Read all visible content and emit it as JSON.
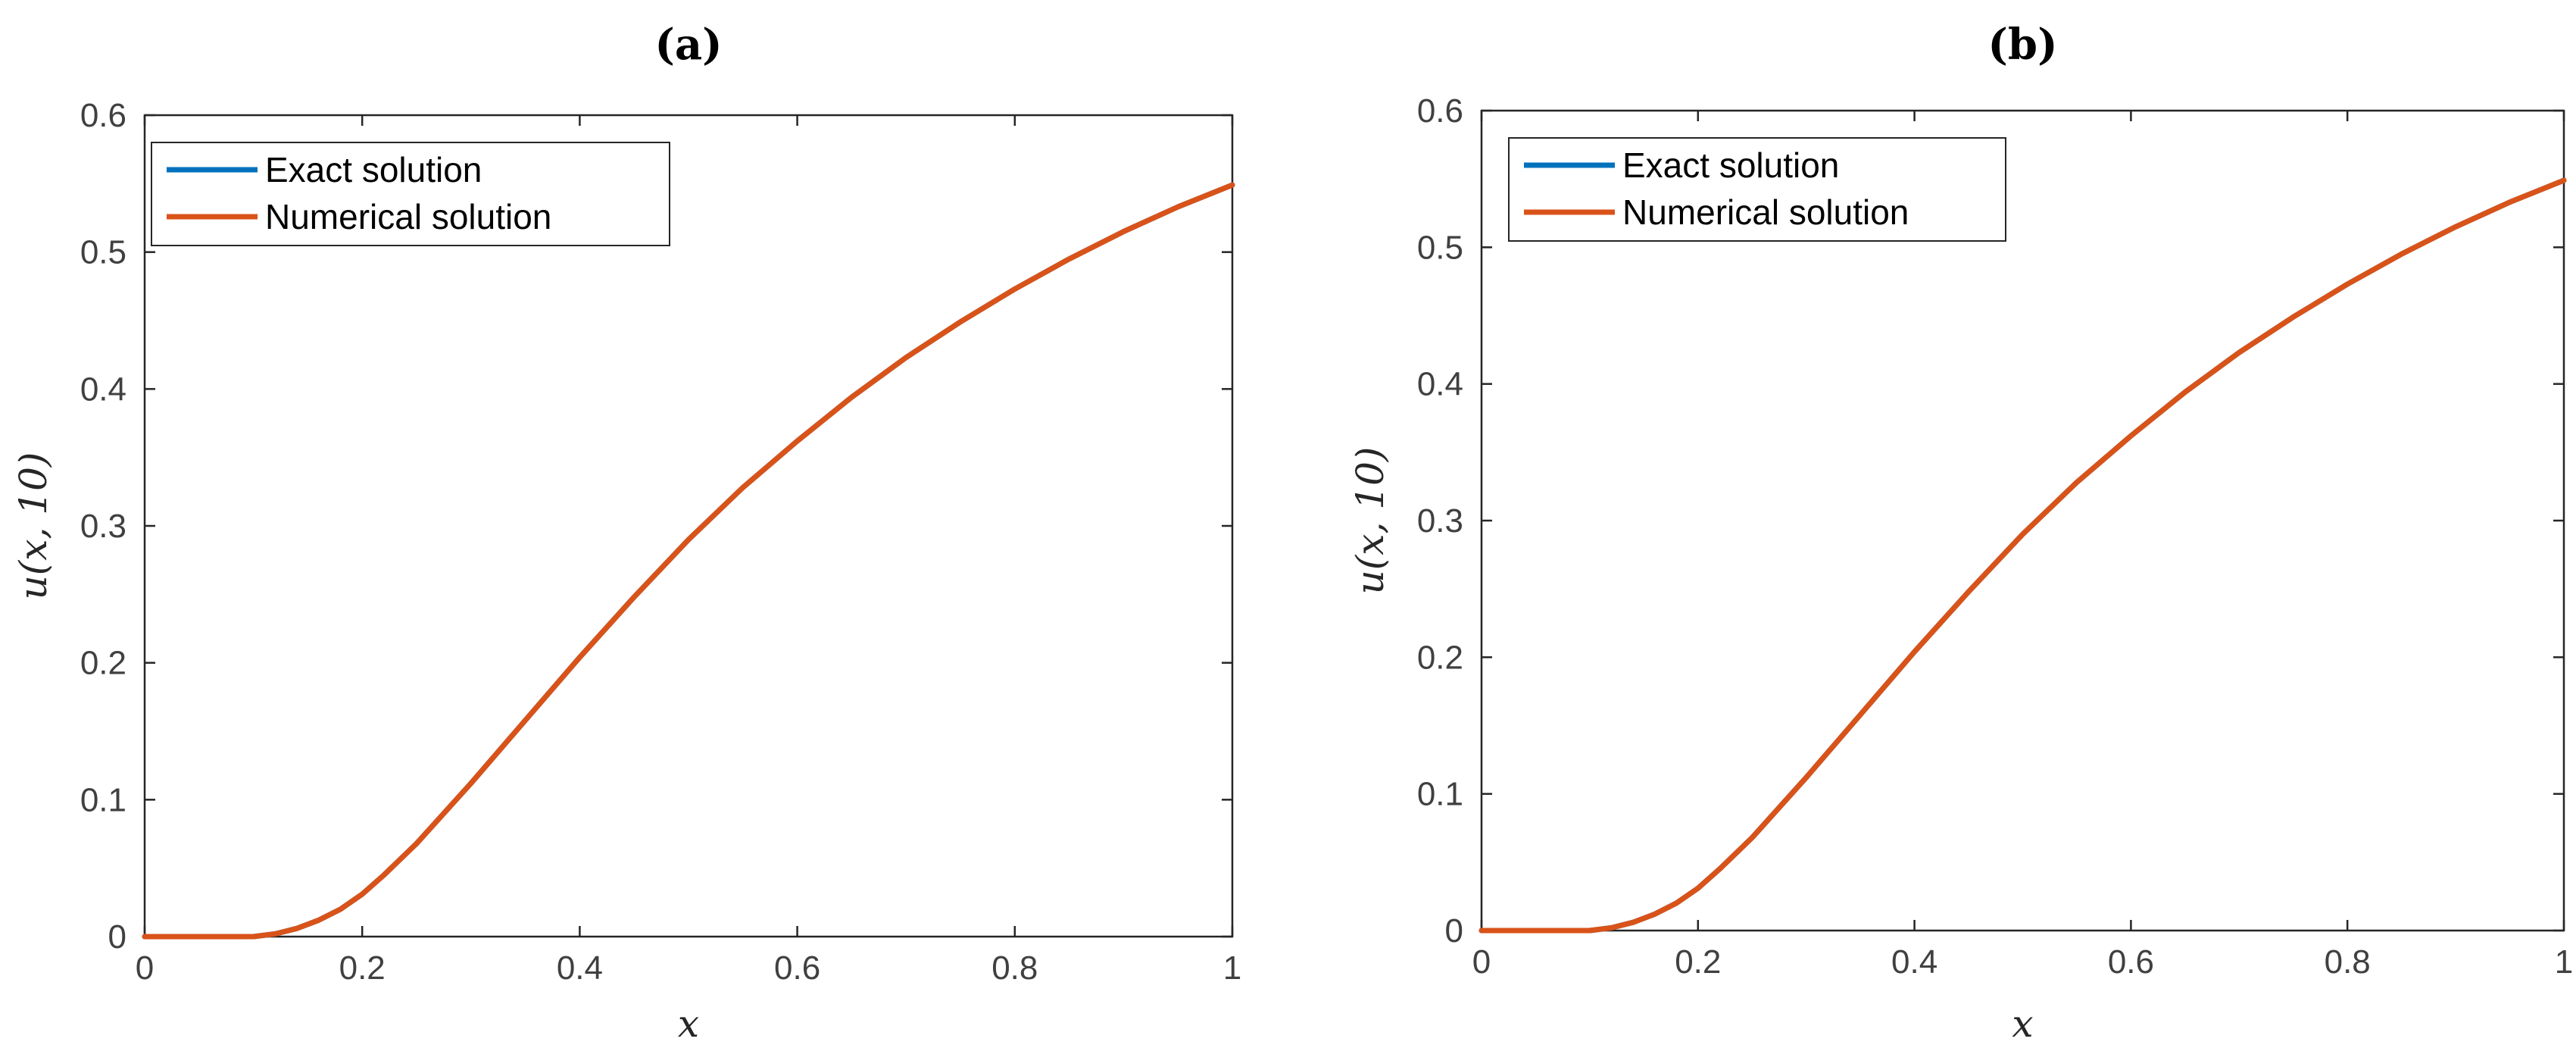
{
  "chart_data": [
    {
      "type": "line",
      "title": "(a)",
      "xlabel": "x",
      "ylabel": "u(x, 10)",
      "xlim": [
        0,
        1
      ],
      "ylim": [
        0,
        0.6
      ],
      "xticks": [
        0,
        0.2,
        0.4,
        0.6,
        0.8,
        1
      ],
      "xtick_labels": [
        "0",
        "0.2",
        "0.4",
        "0.6",
        "0.8",
        "1"
      ],
      "yticks": [
        0,
        0.1,
        0.2,
        0.3,
        0.4,
        0.5,
        0.6
      ],
      "ytick_labels": [
        "0",
        "0.1",
        "0.2",
        "0.3",
        "0.4",
        "0.5",
        "0.6"
      ],
      "grid": false,
      "legend": "top-left",
      "x": [
        0,
        0.05,
        0.1,
        0.12,
        0.14,
        0.16,
        0.18,
        0.2,
        0.22,
        0.25,
        0.3,
        0.35,
        0.4,
        0.45,
        0.5,
        0.55,
        0.6,
        0.65,
        0.7,
        0.75,
        0.8,
        0.85,
        0.9,
        0.95,
        1
      ],
      "series": [
        {
          "name": "Exact solution",
          "color": "#0072BD",
          "values": [
            0,
            0,
            0,
            0.002,
            0.006,
            0.012,
            0.02,
            0.031,
            0.045,
            0.068,
            0.112,
            0.158,
            0.204,
            0.248,
            0.29,
            0.328,
            0.362,
            0.394,
            0.423,
            0.449,
            0.473,
            0.495,
            0.515,
            0.533,
            0.549
          ]
        },
        {
          "name": "Numerical solution",
          "color": "#D95319",
          "values": [
            0,
            0,
            0,
            0.002,
            0.006,
            0.012,
            0.02,
            0.031,
            0.045,
            0.068,
            0.112,
            0.158,
            0.204,
            0.248,
            0.29,
            0.328,
            0.362,
            0.394,
            0.423,
            0.449,
            0.473,
            0.495,
            0.515,
            0.533,
            0.549
          ]
        }
      ]
    },
    {
      "type": "line",
      "title": "(b)",
      "xlabel": "x",
      "ylabel": "u(x, 10)",
      "xlim": [
        0,
        1
      ],
      "ylim": [
        0,
        0.6
      ],
      "xticks": [
        0,
        0.2,
        0.4,
        0.6,
        0.8,
        1
      ],
      "xtick_labels": [
        "0",
        "0.2",
        "0.4",
        "0.6",
        "0.8",
        "1"
      ],
      "yticks": [
        0,
        0.1,
        0.2,
        0.3,
        0.4,
        0.5,
        0.6
      ],
      "ytick_labels": [
        "0",
        "0.1",
        "0.2",
        "0.3",
        "0.4",
        "0.5",
        "0.6"
      ],
      "grid": false,
      "legend": "top-left",
      "x": [
        0,
        0.05,
        0.1,
        0.12,
        0.14,
        0.16,
        0.18,
        0.2,
        0.22,
        0.25,
        0.3,
        0.35,
        0.4,
        0.45,
        0.5,
        0.55,
        0.6,
        0.65,
        0.7,
        0.75,
        0.8,
        0.85,
        0.9,
        0.95,
        1
      ],
      "series": [
        {
          "name": "Exact solution",
          "color": "#0072BD",
          "values": [
            0,
            0,
            0,
            0.002,
            0.006,
            0.012,
            0.02,
            0.031,
            0.045,
            0.068,
            0.112,
            0.158,
            0.204,
            0.248,
            0.29,
            0.328,
            0.362,
            0.394,
            0.423,
            0.449,
            0.473,
            0.495,
            0.515,
            0.533,
            0.549
          ]
        },
        {
          "name": "Numerical solution",
          "color": "#D95319",
          "values": [
            0,
            0,
            0,
            0.002,
            0.006,
            0.012,
            0.02,
            0.031,
            0.045,
            0.068,
            0.112,
            0.158,
            0.204,
            0.248,
            0.29,
            0.328,
            0.362,
            0.394,
            0.423,
            0.449,
            0.473,
            0.495,
            0.515,
            0.533,
            0.549
          ]
        }
      ]
    }
  ]
}
